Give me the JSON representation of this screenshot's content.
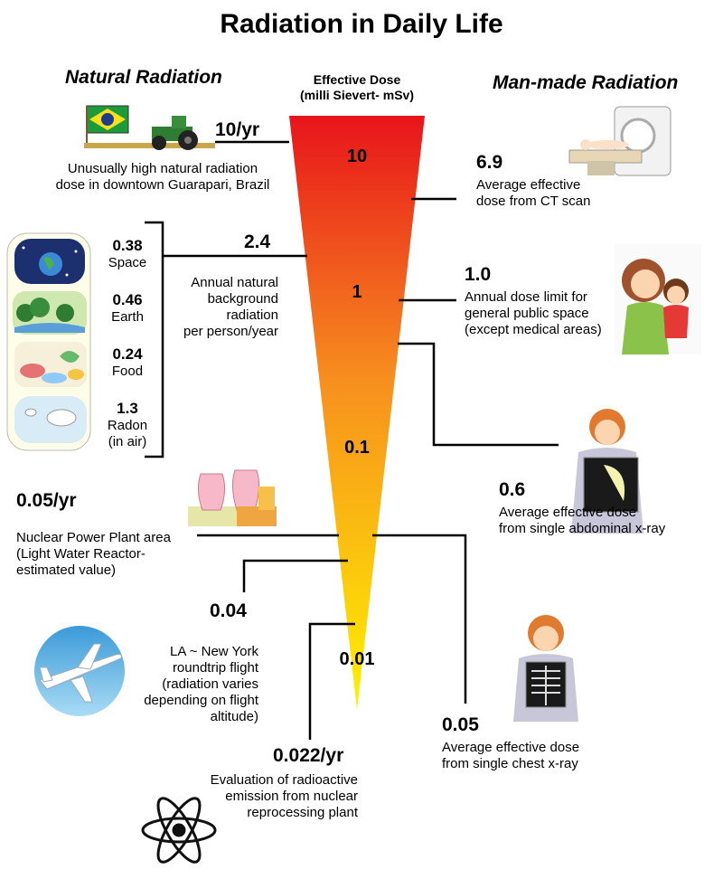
{
  "title": "Radiation in Daily Life",
  "sections": {
    "natural": "Natural Radiation",
    "manmade": "Man-made Radiation"
  },
  "dose_header": {
    "line1": "Effective Dose",
    "line2": "(milli Sievert- mSv)"
  },
  "scale_labels": [
    "10",
    "1",
    "0.1",
    "0.01"
  ],
  "natural": {
    "guarapari": {
      "value": "10/yr",
      "desc": [
        "Unusually high natural radiation",
        "dose in downtown Guarapari, Brazil"
      ]
    },
    "background": {
      "value": "2.4",
      "desc": [
        "Annual natural",
        "background",
        "radiation",
        "per person/year"
      ]
    },
    "components": [
      {
        "value": "0.38",
        "label": "Space"
      },
      {
        "value": "0.46",
        "label": "Earth"
      },
      {
        "value": "0.24",
        "label": "Food"
      },
      {
        "value": "1.3",
        "label": "Radon",
        "label2": "(in air)"
      }
    ],
    "nuclear_plant": {
      "value": "0.05/yr",
      "desc": [
        "Nuclear Power Plant area",
        "(Light Water Reactor-",
        "estimated value)"
      ]
    },
    "flight": {
      "value": "0.04",
      "desc": [
        "LA ~ New York",
        "roundtrip flight",
        "(radiation varies",
        "depending on flight",
        "altitude)"
      ]
    },
    "reprocessing": {
      "value": "0.022/yr",
      "desc": [
        "Evaluation of radioactive",
        "emission from nuclear",
        "reprocessing plant"
      ]
    }
  },
  "manmade": {
    "ct": {
      "value": "6.9",
      "desc": [
        "Average effective",
        "dose from CT scan"
      ]
    },
    "limit": {
      "value": "1.0",
      "desc": [
        "Annual dose limit for",
        "general public space",
        "(except medical areas)"
      ]
    },
    "abdominal": {
      "value": "0.6",
      "desc": [
        "Average effective dose",
        "from single abdominal x-ray"
      ]
    },
    "chest": {
      "value": "0.05",
      "desc": [
        "Average effective dose",
        "from single chest x-ray"
      ]
    }
  },
  "colors": {
    "cone_top": "#e8141c",
    "cone_mid": "#f7901e",
    "cone_bottom": "#fff200"
  }
}
